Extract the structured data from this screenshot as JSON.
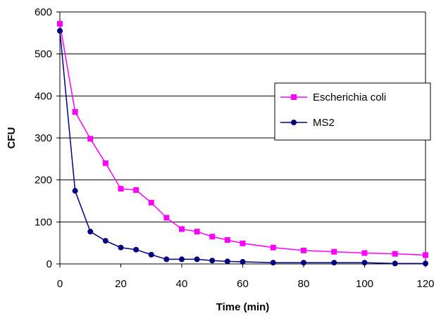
{
  "chart_data": {
    "type": "line",
    "title": "",
    "xlabel": "Time (min)",
    "ylabel": "CFU",
    "xlim": [
      0,
      120
    ],
    "ylim": [
      0,
      600
    ],
    "xticks": [
      "0",
      "20",
      "40",
      "60",
      "80",
      "100",
      "120"
    ],
    "yticks": [
      "0",
      "100",
      "200",
      "300",
      "400",
      "500",
      "600"
    ],
    "grid": "horizontal",
    "legend_position": "right",
    "series": [
      {
        "name": "Escherichia coli",
        "color": "#ff00ff",
        "marker": "square",
        "points": [
          [
            0,
            572
          ],
          [
            5,
            362
          ],
          [
            10,
            298
          ],
          [
            15,
            240
          ],
          [
            20,
            179
          ],
          [
            25,
            176
          ],
          [
            30,
            146
          ],
          [
            35,
            110
          ],
          [
            40,
            83
          ],
          [
            45,
            77
          ],
          [
            50,
            65
          ],
          [
            55,
            57
          ],
          [
            60,
            49
          ],
          [
            70,
            39
          ],
          [
            80,
            32
          ],
          [
            90,
            29
          ],
          [
            100,
            26
          ],
          [
            110,
            24
          ],
          [
            120,
            21
          ]
        ]
      },
      {
        "name": "MS2",
        "color": "#000080",
        "marker": "circle",
        "points": [
          [
            0,
            555
          ],
          [
            5,
            174
          ],
          [
            10,
            77
          ],
          [
            15,
            55
          ],
          [
            20,
            39
          ],
          [
            25,
            34
          ],
          [
            30,
            22
          ],
          [
            35,
            11
          ],
          [
            40,
            11
          ],
          [
            45,
            11
          ],
          [
            50,
            8
          ],
          [
            55,
            6
          ],
          [
            60,
            5
          ],
          [
            70,
            3
          ],
          [
            80,
            3
          ],
          [
            90,
            3
          ],
          [
            100,
            3
          ],
          [
            110,
            1
          ],
          [
            120,
            1
          ]
        ]
      }
    ]
  }
}
